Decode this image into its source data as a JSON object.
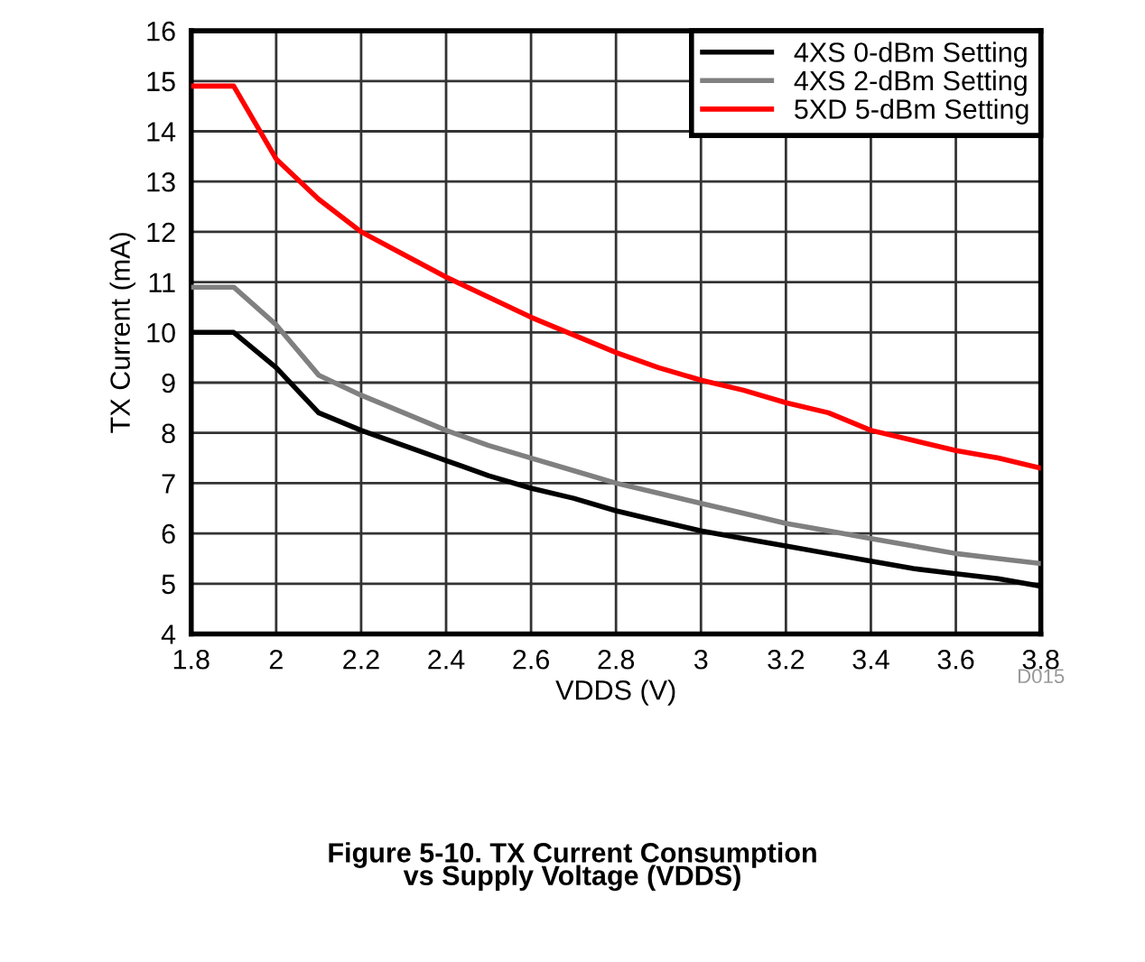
{
  "chart_data": {
    "type": "line",
    "title": "Figure 5-10. TX Current Consumption\nvs Supply Voltage (VDDS)",
    "xlabel": "VDDS (V)",
    "ylabel": "TX Current (mA)",
    "annotations": [
      "D015"
    ],
    "x": [
      1.8,
      1.9,
      2.0,
      2.1,
      2.2,
      2.3,
      2.4,
      2.5,
      2.6,
      2.7,
      2.8,
      2.9,
      3.0,
      3.1,
      3.2,
      3.3,
      3.4,
      3.5,
      3.6,
      3.7,
      3.8
    ],
    "series": [
      {
        "name": "4XS 0-dBm Setting",
        "color": "#000000",
        "values": [
          10.0,
          10.0,
          9.3,
          8.4,
          8.05,
          7.75,
          7.45,
          7.15,
          6.9,
          6.7,
          6.45,
          6.25,
          6.05,
          5.9,
          5.75,
          5.6,
          5.45,
          5.3,
          5.2,
          5.1,
          4.95
        ]
      },
      {
        "name": "4XS 2-dBm Setting",
        "color": "#808080",
        "values": [
          10.9,
          10.9,
          10.15,
          9.15,
          8.75,
          8.4,
          8.05,
          7.75,
          7.5,
          7.25,
          7.0,
          6.8,
          6.6,
          6.4,
          6.2,
          6.05,
          5.9,
          5.75,
          5.6,
          5.5,
          5.4
        ]
      },
      {
        "name": "5XD 5-dBm Setting",
        "color": "#ff0000",
        "values": [
          14.9,
          14.9,
          13.45,
          12.65,
          12.0,
          11.55,
          11.1,
          10.7,
          10.3,
          9.95,
          9.6,
          9.3,
          9.05,
          8.85,
          8.6,
          8.4,
          8.05,
          7.85,
          7.65,
          7.5,
          7.3
        ]
      }
    ],
    "xlim": [
      1.8,
      3.8
    ],
    "xticks": [
      1.8,
      2,
      2.2,
      2.4,
      2.6,
      2.8,
      3,
      3.2,
      3.4,
      3.6,
      3.8
    ],
    "ylim": [
      4,
      16
    ],
    "yticks": [
      4,
      5,
      6,
      7,
      8,
      9,
      10,
      11,
      12,
      13,
      14,
      15,
      16
    ],
    "grid": true,
    "legend": "top right",
    "marker": "none",
    "line_style": "solid"
  }
}
